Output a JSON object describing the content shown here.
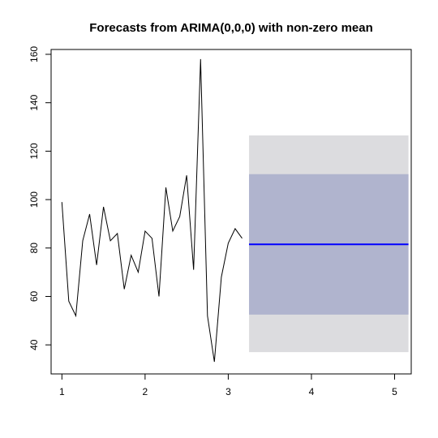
{
  "chart_data": {
    "type": "line",
    "title": "Forecasts from ARIMA(0,0,0) with non-zero mean",
    "xlabel": "",
    "ylabel": "",
    "xlim": [
      0.87,
      5.2
    ],
    "ylim": [
      28,
      162
    ],
    "x_ticks": [
      1,
      2,
      3,
      4,
      5
    ],
    "y_ticks": [
      40,
      60,
      80,
      100,
      120,
      140,
      160
    ],
    "grid": false,
    "legend": "none",
    "series": [
      {
        "role": "observed",
        "color": "#000000",
        "x": [
          1.0,
          1.083,
          1.167,
          1.25,
          1.333,
          1.417,
          1.5,
          1.583,
          1.667,
          1.75,
          1.833,
          1.917,
          2.0,
          2.083,
          2.167,
          2.25,
          2.333,
          2.417,
          2.5,
          2.583,
          2.667,
          2.75,
          2.833,
          2.917,
          3.0,
          3.083,
          3.167
        ],
        "y": [
          99,
          58,
          52,
          83,
          94,
          73,
          97,
          83,
          86,
          63,
          77,
          70,
          87,
          84,
          60,
          105,
          87,
          93,
          110,
          71,
          158,
          52,
          33,
          68,
          82,
          88,
          84
        ]
      },
      {
        "role": "point-forecast",
        "color": "#0000ff",
        "x": [
          3.25,
          5.167
        ],
        "y": [
          81.5,
          81.5
        ]
      }
    ],
    "intervals": [
      {
        "level": "95%",
        "color": "#dcdcdf",
        "x": [
          3.25,
          5.167
        ],
        "lower": 37,
        "upper": 126.5
      },
      {
        "level": "80%",
        "color": "#b0b4ce",
        "x": [
          3.25,
          5.167
        ],
        "lower": 52.5,
        "upper": 110.5
      }
    ]
  }
}
